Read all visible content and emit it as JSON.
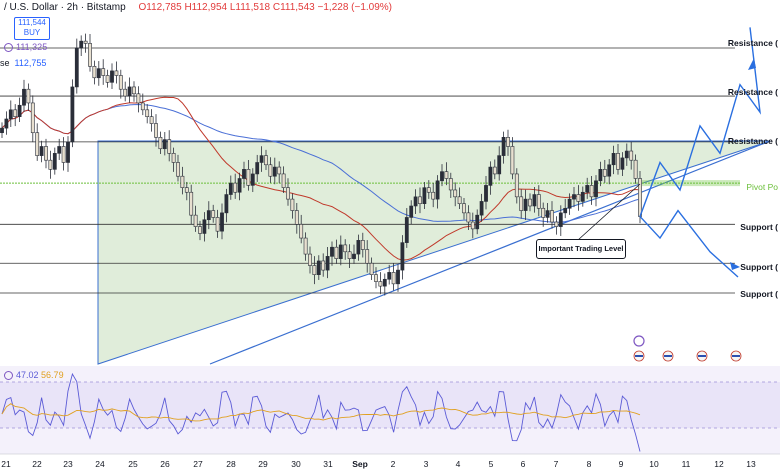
{
  "header": {
    "title": "/ U.S. Dollar · 2h · Bitstamp",
    "ohlc": "O112,785 H112,954 L111,518 C111,543 −1,228 (−1.09%)",
    "buy_price": "111,544",
    "buy_label": "BUY",
    "line1_value": "111,325",
    "line2_prefix": "se",
    "line2_value": "112,755"
  },
  "rsi": {
    "value1": "47.02",
    "value2": "56.79"
  },
  "levels": {
    "resistance1": "Resistance (",
    "resistance2": "Resistance (",
    "resistance3": "Resistance (",
    "pivot": "Pivot Po",
    "support1": "Support (",
    "support2": "Support (",
    "support3": "Support (",
    "annotation": "Important Trading Level"
  },
  "x_ticks": [
    "21",
    "22",
    "23",
    "24",
    "25",
    "26",
    "27",
    "28",
    "29",
    "30",
    "31",
    "Sep",
    "2",
    "3",
    "4",
    "5",
    "6",
    "7",
    "8",
    "9",
    "10",
    "11",
    "12",
    "13"
  ],
  "colors": {
    "triangle_fill": "#dbead3",
    "up_candle": "#2a2e39",
    "down_candle": "#e8e0d0",
    "ma_blue": "#4a6fd6",
    "ma_red": "#c0392b",
    "rsi_line": "#5b5bd6",
    "rsi_signal": "#e0a020",
    "pivot": "#6bbf3a",
    "arrow": "#2a6fe0"
  },
  "chart_data": {
    "type": "candlestick",
    "title": "",
    "xlabel": "",
    "ylabel": "",
    "levels_price": {
      "resistance_1": 118900,
      "resistance_2": 116800,
      "resistance_3": 114800,
      "pivot": 113000,
      "support_1": 111200,
      "support_2": 109500,
      "support_3": 108200
    },
    "projection_up": [
      111543,
      113900,
      112700,
      115500,
      114300,
      117300,
      116100,
      119800
    ],
    "projection_down": [
      111543,
      110600,
      111800,
      110000,
      108900
    ],
    "close_series": [
      115400,
      115800,
      116200,
      115900,
      116400,
      117100,
      116500,
      115200,
      114200,
      114600,
      114000,
      113600,
      114300,
      114600,
      113900,
      114800,
      117200,
      118900,
      119200,
      119100,
      118100,
      117600,
      118000,
      117700,
      117400,
      117900,
      117700,
      117100,
      116800,
      117200,
      116900,
      116500,
      116200,
      115900,
      115600,
      115000,
      114500,
      114900,
      114300,
      113900,
      113300,
      112800,
      112600,
      111600,
      111100,
      110800,
      111400,
      111800,
      111500,
      110900,
      111700,
      112500,
      113000,
      112600,
      113200,
      113600,
      112900,
      113400,
      113900,
      114200,
      113800,
      113300,
      113700,
      113400,
      112800,
      112300,
      111800,
      111200,
      110600,
      109900,
      109400,
      109000,
      109600,
      109200,
      109800,
      110200,
      109700,
      110300,
      110000,
      109700,
      109900,
      110500,
      110100,
      109500,
      109000,
      108700,
      108500,
      108800,
      109100,
      108600,
      109200,
      110400,
      111500,
      112000,
      112400,
      112100,
      112800,
      112600,
      112300,
      113100,
      113500,
      113200,
      112700,
      112400,
      112100,
      111700,
      111300,
      111000,
      111600,
      112200,
      112900,
      113700,
      113400,
      114200,
      115000,
      114600,
      113400,
      112400,
      111800,
      112300,
      112000,
      112500,
      111900,
      111500,
      111800,
      111300,
      111100,
      111700,
      111900,
      112300,
      112500,
      112200,
      112600,
      112900,
      112400,
      113100,
      113600,
      113300,
      113800,
      114300,
      113600,
      114100,
      114400,
      114000,
      113200,
      111543
    ]
  }
}
